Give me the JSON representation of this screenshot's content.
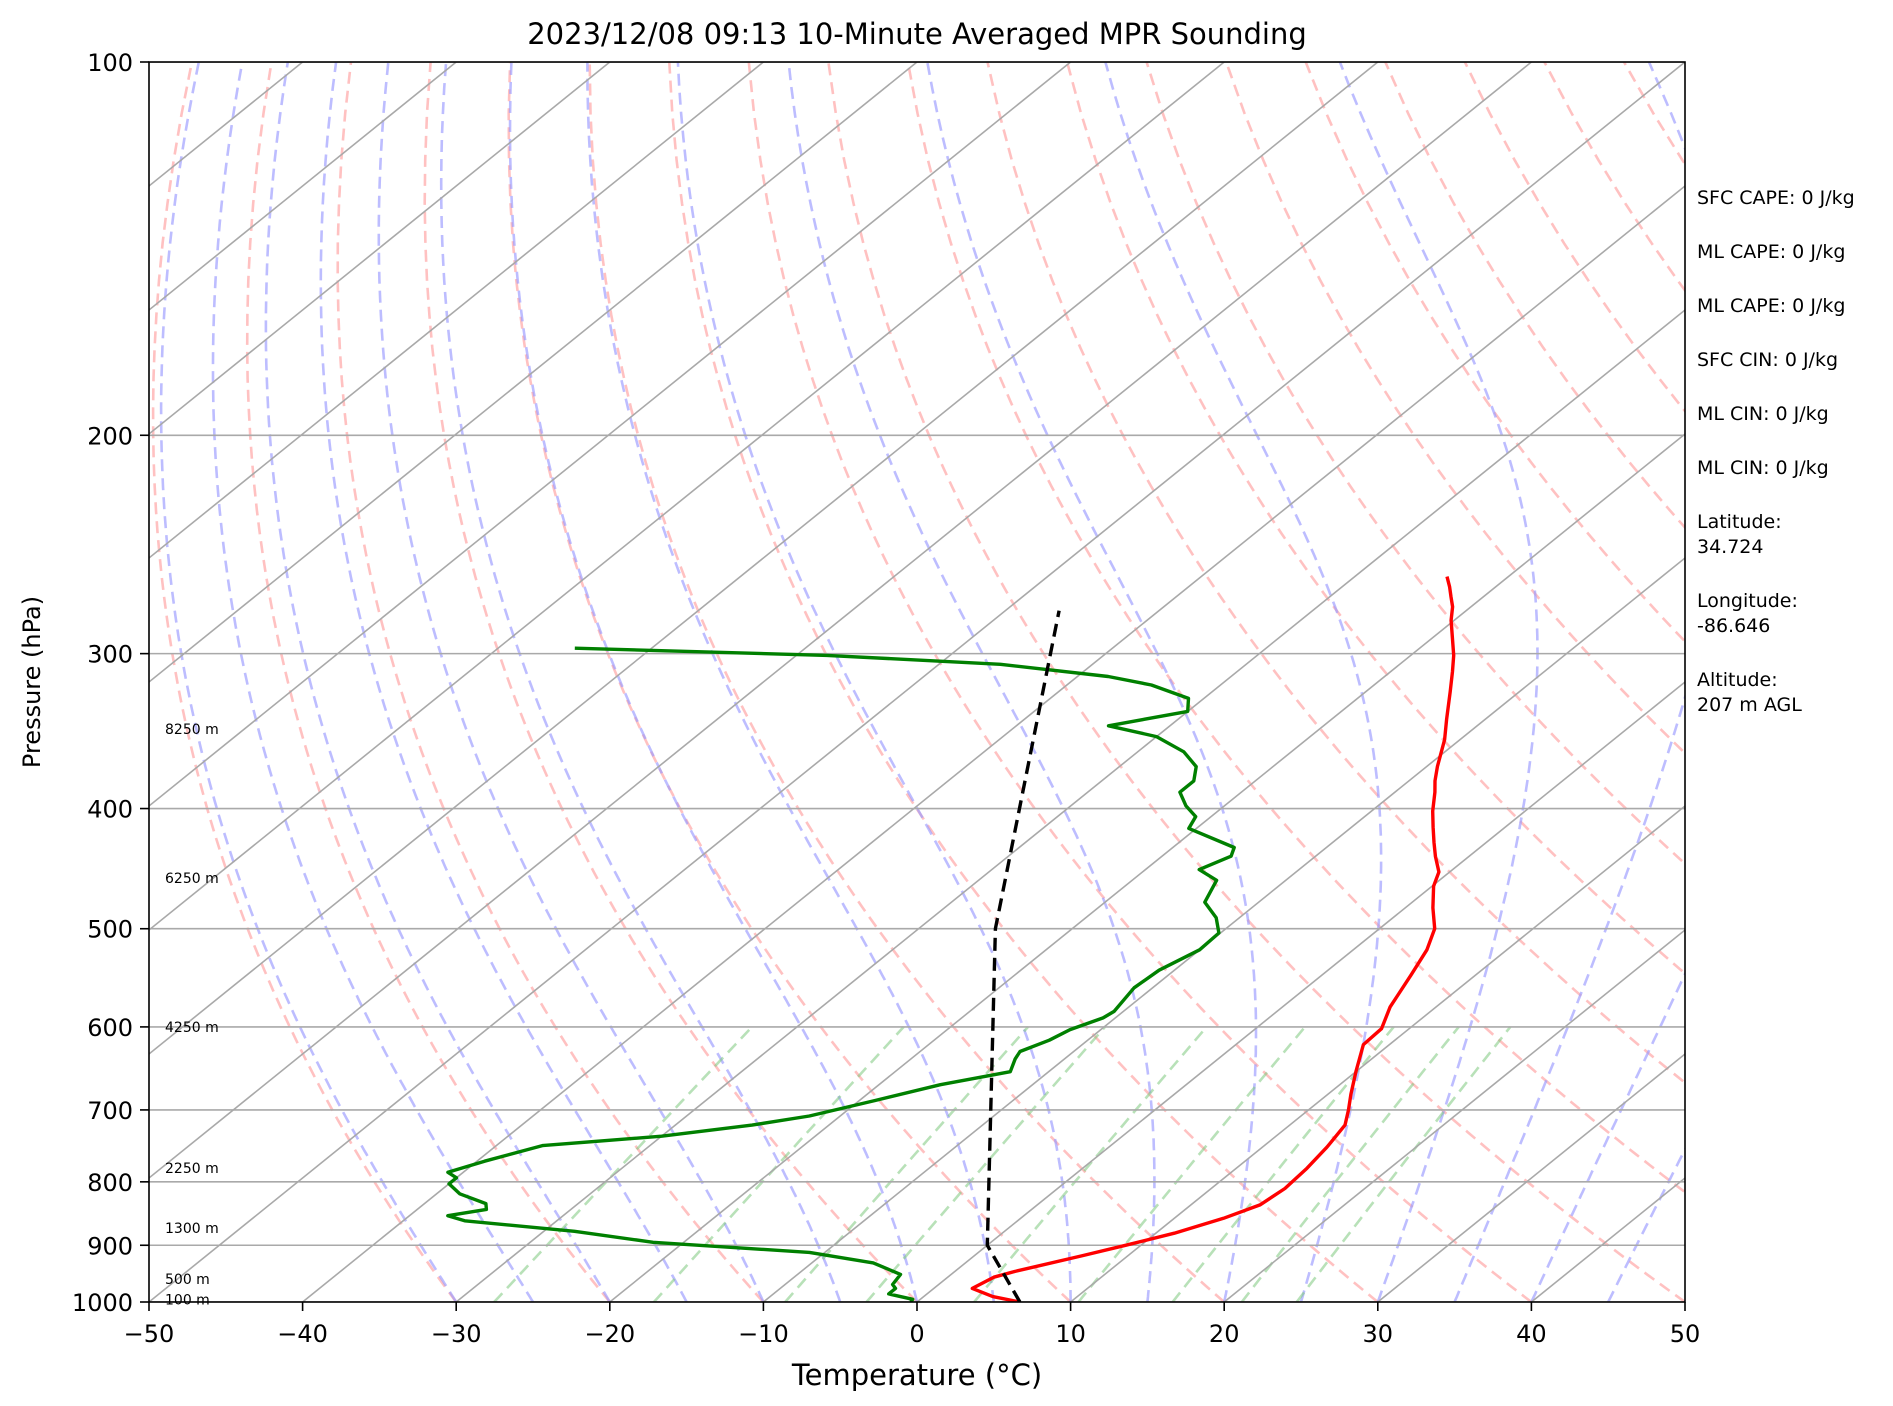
{
  "chart_data": {
    "type": "line",
    "subtype": "skew-t log-p sounding",
    "title": "2023/12/08 09:13 10-Minute Averaged MPR Sounding",
    "xlabel": "Temperature (°C)",
    "ylabel": "Pressure (hPa)",
    "xlim": [
      -50,
      50
    ],
    "ylim": [
      1000,
      100
    ],
    "y_scale": "log",
    "x_ticks": [
      -50,
      -40,
      -30,
      -20,
      -10,
      0,
      10,
      20,
      30,
      40,
      50
    ],
    "x_tick_labels": [
      "−50",
      "−40",
      "−30",
      "−20",
      "−10",
      "0",
      "10",
      "20",
      "30",
      "40",
      "50"
    ],
    "y_ticks": [
      100,
      200,
      300,
      400,
      500,
      600,
      700,
      800,
      900,
      1000
    ],
    "y_tick_labels": [
      "100",
      "200",
      "300",
      "400",
      "500",
      "600",
      "700",
      "800",
      "900",
      "1000"
    ],
    "grid": true,
    "height_labels": [
      {
        "label": "8250 m",
        "p": 345
      },
      {
        "label": "6250 m",
        "p": 455
      },
      {
        "label": "4250 m",
        "p": 600
      },
      {
        "label": "2250 m",
        "p": 780
      },
      {
        "label": "1300 m",
        "p": 872
      },
      {
        "label": "500 m",
        "p": 958
      },
      {
        "label": "100 m",
        "p": 995
      }
    ],
    "series": [
      {
        "kind": "temperature",
        "color": "#ff0000",
        "points": [
          [
            6.7,
            1000
          ],
          [
            4.5,
            990
          ],
          [
            2.5,
            975
          ],
          [
            3.0,
            955
          ],
          [
            3.9,
            945
          ],
          [
            7.0,
            918
          ],
          [
            9.0,
            900
          ],
          [
            11.2,
            880
          ],
          [
            13.2,
            856
          ],
          [
            14.5,
            835
          ],
          [
            14.8,
            810
          ],
          [
            14.6,
            780
          ],
          [
            14.2,
            750
          ],
          [
            13.6,
            720
          ],
          [
            12.6,
            700
          ],
          [
            11.5,
            680
          ],
          [
            10.0,
            652
          ],
          [
            8.3,
            620
          ],
          [
            8.2,
            602
          ],
          [
            7.0,
            578
          ],
          [
            5.8,
            545
          ],
          [
            4.8,
            520
          ],
          [
            3.6,
            500
          ],
          [
            1.8,
            481
          ],
          [
            0.1,
            462
          ],
          [
            -0.7,
            450
          ],
          [
            -2.2,
            437
          ],
          [
            -3.4,
            426
          ],
          [
            -4.7,
            414
          ],
          [
            -6.0,
            402
          ],
          [
            -7.4,
            388
          ],
          [
            -8.3,
            380
          ],
          [
            -9.3,
            370
          ],
          [
            -11.0,
            352
          ],
          [
            -12.5,
            339
          ],
          [
            -14.5,
            322
          ],
          [
            -16.0,
            310
          ],
          [
            -17.2,
            301
          ],
          [
            -18.6,
            292
          ],
          [
            -20.2,
            282
          ],
          [
            -21.2,
            275
          ],
          [
            -22.1,
            270
          ],
          [
            -23.0,
            265
          ],
          [
            -24.0,
            260
          ]
        ]
      },
      {
        "kind": "dewpoint",
        "color": "#008000",
        "points": [
          [
            -0.4,
            1000
          ],
          [
            -0.5,
            995
          ],
          [
            -2.5,
            985
          ],
          [
            -2.5,
            975
          ],
          [
            -3.0,
            968
          ],
          [
            -3.3,
            950
          ],
          [
            -6.0,
            930
          ],
          [
            -11.0,
            912
          ],
          [
            -22.0,
            895
          ],
          [
            -28.0,
            877
          ],
          [
            -36.0,
            860
          ],
          [
            -37.5,
            852
          ],
          [
            -35.5,
            842
          ],
          [
            -36.0,
            833
          ],
          [
            -38.5,
            818
          ],
          [
            -40.0,
            803
          ],
          [
            -40.0,
            794
          ],
          [
            -41.0,
            786
          ],
          [
            -39.5,
            770
          ],
          [
            -37.0,
            748
          ],
          [
            -30.0,
            735
          ],
          [
            -25.0,
            720
          ],
          [
            -22.0,
            708
          ],
          [
            -19.0,
            688
          ],
          [
            -16.0,
            668
          ],
          [
            -12.5,
            652
          ],
          [
            -13.2,
            637
          ],
          [
            -13.5,
            628
          ],
          [
            -12.5,
            615
          ],
          [
            -12.0,
            603
          ],
          [
            -10.8,
            590
          ],
          [
            -10.6,
            583
          ],
          [
            -11.2,
            558
          ],
          [
            -11.0,
            540
          ],
          [
            -10.0,
            520
          ],
          [
            -10.1,
            504
          ],
          [
            -11.5,
            490
          ],
          [
            -13.5,
            476
          ],
          [
            -14.5,
            457
          ],
          [
            -16.5,
            448
          ],
          [
            -15.5,
            437
          ],
          [
            -16.0,
            430
          ],
          [
            -20.5,
            415
          ],
          [
            -21.0,
            406
          ],
          [
            -22.5,
            398
          ],
          [
            -24.0,
            388
          ],
          [
            -24.0,
            380
          ],
          [
            -25.0,
            370
          ],
          [
            -27.0,
            360
          ],
          [
            -30.0,
            350
          ],
          [
            -34.0,
            343
          ],
          [
            -30.0,
            334
          ],
          [
            -31.0,
            326
          ],
          [
            -34.5,
            318
          ],
          [
            -38.0,
            313
          ],
          [
            -46.0,
            306
          ],
          [
            -58.0,
            301
          ],
          [
            -75.0,
            297
          ]
        ]
      },
      {
        "kind": "parcel",
        "color": "#000000",
        "style": "dashed",
        "points": [
          [
            6.7,
            1000
          ],
          [
            0.0,
            900
          ],
          [
            -25.0,
            500
          ],
          [
            -46.5,
            277
          ]
        ]
      }
    ]
  },
  "side_info": [
    "SFC CAPE: 0 J/kg",
    "ML CAPE: 0 J/kg",
    "ML CAPE: 0 J/kg",
    "SFC CIN: 0 J/kg",
    "ML CIN: 0 J/kg",
    "ML CIN: 0 J/kg",
    "Latitude:\n34.724",
    "Longitude:\n-86.646",
    "Altitude:\n207 m AGL"
  ]
}
